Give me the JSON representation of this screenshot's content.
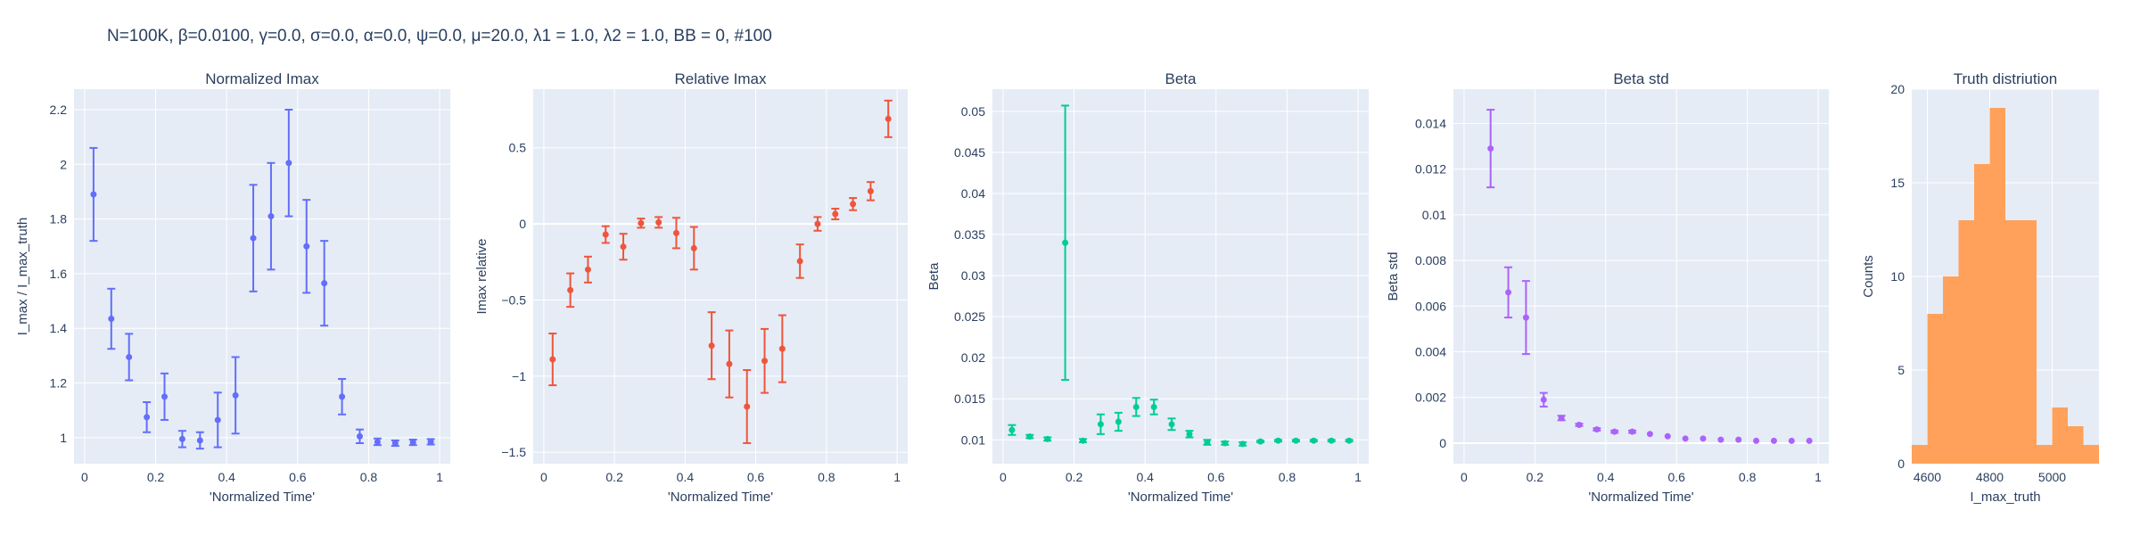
{
  "title": "N=100K, β=0.0100, γ=0.0, σ=0.0,  α=0.0, ψ=0.0, μ=20.0, λ1 = 1.0, λ2 = 1.0, BB = 0, #100",
  "colors": {
    "plot_bg": "#e5ecf6",
    "grid": "#ffffff",
    "text": "#2a3f5f",
    "normalized_imax": "#636efa",
    "relative_imax": "#ef553b",
    "beta": "#00cc96",
    "beta_std": "#ab63fa",
    "hist": "#ffa15a"
  },
  "chart_data": [
    {
      "type": "scatter",
      "title": "Normalized Imax",
      "xlabel": "'Normalized Time'",
      "ylabel": "I_max / I_max_truth",
      "xlim": [
        -0.03,
        1.03
      ],
      "ylim": [
        0.905,
        2.275
      ],
      "xticks": [
        0,
        0.2,
        0.4,
        0.6,
        0.8,
        1
      ],
      "xtick_labels": [
        "0",
        "0.2",
        "0.4",
        "0.6",
        "0.8",
        "1"
      ],
      "yticks": [
        1,
        1.2,
        1.4,
        1.6,
        1.8,
        2,
        2.2
      ],
      "ytick_labels": [
        "1",
        "1.2",
        "1.4",
        "1.6",
        "1.8",
        "2",
        "2.2"
      ],
      "color_key": "normalized_imax",
      "x": [
        0.025,
        0.075,
        0.125,
        0.175,
        0.225,
        0.275,
        0.325,
        0.375,
        0.425,
        0.475,
        0.525,
        0.575,
        0.625,
        0.675,
        0.725,
        0.775,
        0.825,
        0.875,
        0.925,
        0.975
      ],
      "y": [
        1.89,
        1.435,
        1.295,
        1.075,
        1.15,
        0.995,
        0.99,
        1.065,
        1.155,
        1.73,
        1.81,
        2.005,
        1.7,
        1.565,
        1.15,
        1.005,
        0.985,
        0.98,
        0.983,
        0.985
      ],
      "err": [
        0.17,
        0.11,
        0.085,
        0.055,
        0.085,
        0.03,
        0.03,
        0.1,
        0.14,
        0.195,
        0.195,
        0.195,
        0.17,
        0.155,
        0.065,
        0.025,
        0.012,
        0.01,
        0.01,
        0.01
      ]
    },
    {
      "type": "scatter",
      "title": "Relative Imax",
      "xlabel": "'Normalized Time'",
      "ylabel": "Imax relative",
      "xlim": [
        -0.03,
        1.03
      ],
      "ylim": [
        -1.575,
        0.885
      ],
      "xticks": [
        0,
        0.2,
        0.4,
        0.6,
        0.8,
        1
      ],
      "xtick_labels": [
        "0",
        "0.2",
        "0.4",
        "0.6",
        "0.8",
        "1"
      ],
      "yticks": [
        -1.5,
        -1,
        -0.5,
        0,
        0.5
      ],
      "ytick_labels": [
        "−1.5",
        "−1",
        "−0.5",
        "0",
        "0.5"
      ],
      "color_key": "relative_imax",
      "x": [
        0.025,
        0.075,
        0.125,
        0.175,
        0.225,
        0.275,
        0.325,
        0.375,
        0.425,
        0.475,
        0.525,
        0.575,
        0.625,
        0.675,
        0.725,
        0.775,
        0.825,
        0.875,
        0.925,
        0.975
      ],
      "y": [
        -0.89,
        -0.435,
        -0.3,
        -0.07,
        -0.15,
        0.005,
        0.01,
        -0.06,
        -0.16,
        -0.8,
        -0.92,
        -1.2,
        -0.9,
        -0.82,
        -0.245,
        0,
        0.065,
        0.13,
        0.215,
        0.69
      ],
      "err": [
        0.17,
        0.11,
        0.085,
        0.055,
        0.085,
        0.03,
        0.035,
        0.1,
        0.14,
        0.22,
        0.22,
        0.24,
        0.21,
        0.22,
        0.11,
        0.045,
        0.035,
        0.04,
        0.06,
        0.12
      ]
    },
    {
      "type": "scatter",
      "title": "Beta",
      "xlabel": "'Normalized Time'",
      "ylabel": "Beta",
      "xlim": [
        -0.03,
        1.03
      ],
      "ylim": [
        0.0071,
        0.0527
      ],
      "xticks": [
        0,
        0.2,
        0.4,
        0.6,
        0.8,
        1
      ],
      "xtick_labels": [
        "0",
        "0.2",
        "0.4",
        "0.6",
        "0.8",
        "1"
      ],
      "yticks": [
        0.01,
        0.015,
        0.02,
        0.025,
        0.03,
        0.035,
        0.04,
        0.045,
        0.05
      ],
      "ytick_labels": [
        "0.01",
        "0.015",
        "0.02",
        "0.025",
        "0.03",
        "0.035",
        "0.04",
        "0.045",
        "0.05"
      ],
      "color_key": "beta",
      "x": [
        0.025,
        0.075,
        0.125,
        0.175,
        0.225,
        0.275,
        0.325,
        0.375,
        0.425,
        0.475,
        0.525,
        0.575,
        0.625,
        0.675,
        0.725,
        0.775,
        0.825,
        0.875,
        0.925,
        0.975
      ],
      "y": [
        0.0112,
        0.0104,
        0.0101,
        0.034,
        0.0099,
        0.0119,
        0.0122,
        0.014,
        0.014,
        0.0119,
        0.0107,
        0.0097,
        0.0096,
        0.0095,
        0.0098,
        0.0099,
        0.0099,
        0.0099,
        0.0099,
        0.0099
      ],
      "err": [
        0.0006,
        0.0002,
        0.0002,
        0.0167,
        0.0002,
        0.0012,
        0.0011,
        0.0011,
        0.0009,
        0.0007,
        0.0004,
        0.0003,
        0.0002,
        0.0002,
        0.0001,
        0.0001,
        0.0001,
        0.0001,
        0.0001,
        0.0001
      ]
    },
    {
      "type": "scatter",
      "title": "Beta std",
      "xlabel": "'Normalized Time'",
      "ylabel": "Beta std",
      "xlim": [
        -0.03,
        1.03
      ],
      "ylim": [
        -0.0009,
        0.0155
      ],
      "xticks": [
        0,
        0.2,
        0.4,
        0.6,
        0.8,
        1
      ],
      "xtick_labels": [
        "0",
        "0.2",
        "0.4",
        "0.6",
        "0.8",
        "1"
      ],
      "yticks": [
        0,
        0.002,
        0.004,
        0.006,
        0.008,
        0.01,
        0.012,
        0.014
      ],
      "ytick_labels": [
        "0",
        "0.002",
        "0.004",
        "0.006",
        "0.008",
        "0.01",
        "0.012",
        "0.014"
      ],
      "color_key": "beta_std",
      "x": [
        0.075,
        0.125,
        0.175,
        0.225,
        0.275,
        0.325,
        0.375,
        0.425,
        0.475,
        0.525,
        0.575,
        0.625,
        0.675,
        0.725,
        0.775,
        0.825,
        0.875,
        0.925,
        0.975
      ],
      "y": [
        0.0129,
        0.0066,
        0.0055,
        0.0019,
        0.0011,
        0.0008,
        0.0006,
        0.0005,
        0.0005,
        0.0004,
        0.0003,
        0.0002,
        0.0002,
        0.00015,
        0.00015,
        0.0001,
        0.0001,
        0.0001,
        0.0001
      ],
      "err": [
        0.0017,
        0.0011,
        0.0016,
        0.0003,
        0.0001,
        5e-05,
        5e-05,
        5e-05,
        5e-05,
        0,
        0,
        0,
        0,
        0,
        0,
        0,
        0,
        0,
        0
      ]
    },
    {
      "type": "bar",
      "title": "Truth distriution",
      "xlabel": "I_max_truth",
      "ylabel": "Counts",
      "xlim": [
        4550,
        5150
      ],
      "ylim": [
        0,
        20
      ],
      "xticks": [
        4600,
        4800,
        5000
      ],
      "xtick_labels": [
        "4600",
        "4800",
        "5000"
      ],
      "yticks": [
        0,
        5,
        10,
        15,
        20
      ],
      "ytick_labels": [
        "0",
        "5",
        "10",
        "15",
        "20"
      ],
      "color_key": "hist",
      "bin_edges": [
        4550,
        4600,
        4650,
        4700,
        4750,
        4800,
        4850,
        4900,
        4950,
        5000,
        5050,
        5100,
        5150
      ],
      "counts": [
        1,
        8,
        10,
        13,
        16,
        19,
        13,
        13,
        1,
        3,
        2,
        1
      ]
    }
  ]
}
